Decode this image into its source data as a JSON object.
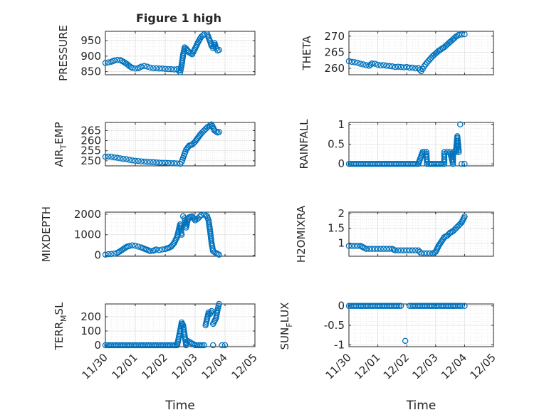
{
  "figure": {
    "title": "Figure 1 high"
  },
  "chart_data": [
    {
      "id": "pressure",
      "type": "scatter",
      "ylabel": "PRESSURE",
      "ylim": [
        840,
        980
      ],
      "yticks": [
        850,
        900,
        950
      ],
      "yticklabels": [
        "850",
        "900",
        "950"
      ],
      "xlim": [
        0,
        5
      ],
      "grid": true,
      "x": [
        0.0,
        0.1,
        0.2,
        0.3,
        0.4,
        0.5,
        0.6,
        0.7,
        0.8,
        0.9,
        1.0,
        1.1,
        1.2,
        1.3,
        1.4,
        1.5,
        1.6,
        1.7,
        1.8,
        1.9,
        2.0,
        2.1,
        2.2,
        2.3,
        2.4,
        2.5,
        2.55,
        2.6,
        2.65,
        2.7,
        2.8,
        2.9,
        3.0,
        3.1,
        3.2,
        3.3,
        3.4,
        3.5,
        3.55,
        3.6,
        3.65,
        3.7,
        3.75,
        3.8
      ],
      "y": [
        878,
        880,
        882,
        886,
        888,
        887,
        882,
        876,
        868,
        862,
        860,
        861,
        866,
        868,
        866,
        863,
        861,
        861,
        860,
        860,
        859,
        858,
        858,
        857,
        858,
        848,
        872,
        905,
        928,
        924,
        912,
        906,
        925,
        945,
        962,
        970,
        972,
        948,
        933,
        926,
        942,
        925,
        918,
        920
      ]
    },
    {
      "id": "theta",
      "type": "scatter",
      "ylabel": "THETA",
      "ylim": [
        258,
        271.5
      ],
      "yticks": [
        260,
        265,
        270
      ],
      "yticklabels": [
        "260",
        "265",
        "270"
      ],
      "xlim": [
        0,
        5
      ],
      "grid": true,
      "x": [
        0.0,
        0.1,
        0.2,
        0.3,
        0.4,
        0.5,
        0.6,
        0.7,
        0.8,
        0.9,
        1.0,
        1.1,
        1.2,
        1.3,
        1.4,
        1.5,
        1.6,
        1.7,
        1.8,
        1.9,
        2.0,
        2.1,
        2.2,
        2.3,
        2.4,
        2.5,
        2.55,
        2.6,
        2.65,
        2.7,
        2.8,
        2.9,
        3.0,
        3.1,
        3.2,
        3.3,
        3.4,
        3.5,
        3.6,
        3.7,
        3.8,
        3.9,
        4.0
      ],
      "y": [
        262.2,
        262.0,
        261.9,
        261.7,
        261.4,
        261.2,
        261.0,
        260.8,
        261.5,
        261.4,
        261.1,
        260.9,
        261.0,
        260.8,
        260.7,
        260.6,
        260.4,
        260.5,
        260.4,
        260.3,
        260.4,
        260.2,
        260.2,
        260.0,
        260.1,
        259.1,
        259.8,
        260.6,
        261.2,
        261.8,
        262.8,
        263.8,
        264.6,
        265.4,
        266.0,
        266.6,
        267.4,
        268.2,
        269.0,
        269.8,
        270.4,
        270.5,
        270.6
      ]
    },
    {
      "id": "air_temp",
      "type": "scatter",
      "ylim": [
        247.5,
        269
      ],
      "yticks": [
        250,
        255,
        260,
        265
      ],
      "yticklabels": [
        "250",
        "255",
        "260",
        "265"
      ],
      "xlim": [
        0,
        5
      ],
      "grid": true,
      "x": [
        0.0,
        0.1,
        0.2,
        0.3,
        0.4,
        0.5,
        0.6,
        0.7,
        0.8,
        0.9,
        1.0,
        1.1,
        1.2,
        1.3,
        1.4,
        1.5,
        1.6,
        1.7,
        1.8,
        1.9,
        2.0,
        2.1,
        2.2,
        2.3,
        2.4,
        2.5,
        2.55,
        2.6,
        2.65,
        2.7,
        2.8,
        2.9,
        3.0,
        3.1,
        3.2,
        3.3,
        3.4,
        3.5,
        3.55,
        3.6,
        3.65,
        3.7,
        3.75,
        3.8
      ],
      "y": [
        252.0,
        252.1,
        252.0,
        251.7,
        251.5,
        251.2,
        251.0,
        250.8,
        250.5,
        250.2,
        250.0,
        249.9,
        249.7,
        249.6,
        249.5,
        249.4,
        249.3,
        249.2,
        249.1,
        249.0,
        249.0,
        248.9,
        248.8,
        248.8,
        248.7,
        248.5,
        249.5,
        251.5,
        253.5,
        255.5,
        257.5,
        258.0,
        259.5,
        261.5,
        263.5,
        265.0,
        266.5,
        267.5,
        268.0,
        266.5,
        265.0,
        264.5,
        264.0,
        264.3
      ]
    },
    {
      "id": "rainfall",
      "type": "scatter",
      "ylabel": "RAINFALL",
      "ylim": [
        -0.05,
        1.05
      ],
      "yticks": [
        0,
        0.5,
        1
      ],
      "yticklabels": [
        "0",
        "0.5",
        "1"
      ],
      "xlim": [
        0,
        5
      ],
      "grid": true,
      "x": [
        0.0,
        0.3,
        0.6,
        0.9,
        1.2,
        1.5,
        1.8,
        2.1,
        2.4,
        2.7,
        3.0,
        3.3,
        3.6,
        3.9,
        4.0,
        2.55,
        2.68,
        3.3,
        3.4,
        3.5,
        3.6,
        3.7,
        3.8,
        3.75,
        3.85
      ],
      "y": [
        0,
        0,
        0,
        0,
        0,
        0,
        0,
        0,
        0,
        0,
        0,
        0,
        0,
        0,
        0,
        0.3,
        0.3,
        0.3,
        0.3,
        0.3,
        0.3,
        0.3,
        0.3,
        0.7,
        1.0
      ]
    },
    {
      "id": "mixdepth",
      "type": "scatter",
      "ylabel": "MIXDEPTH",
      "ylim": [
        -50,
        2100
      ],
      "yticks": [
        0,
        1000,
        2000
      ],
      "yticklabels": [
        "0",
        "1000",
        "2000"
      ],
      "xlim": [
        0,
        5
      ],
      "grid": true,
      "x": [
        0.0,
        0.1,
        0.2,
        0.3,
        0.4,
        0.5,
        0.6,
        0.7,
        0.8,
        0.9,
        1.0,
        1.1,
        1.2,
        1.3,
        1.4,
        1.5,
        1.6,
        1.7,
        1.8,
        1.9,
        2.0,
        2.1,
        2.2,
        2.3,
        2.4,
        2.45,
        2.5,
        2.55,
        2.6,
        2.65,
        2.7,
        2.75,
        2.8,
        2.9,
        3.0,
        3.1,
        3.2,
        3.3,
        3.4,
        3.45,
        3.5,
        3.55,
        3.6,
        3.7,
        3.8
      ],
      "y": [
        30,
        50,
        60,
        80,
        120,
        200,
        300,
        400,
        450,
        480,
        460,
        420,
        380,
        320,
        260,
        200,
        220,
        280,
        250,
        280,
        300,
        350,
        420,
        600,
        900,
        1200,
        1500,
        1000,
        1900,
        1800,
        1350,
        1700,
        1850,
        1900,
        1700,
        1800,
        1950,
        1980,
        1900,
        1700,
        1200,
        600,
        200,
        100,
        30
      ]
    },
    {
      "id": "h2omixra",
      "type": "scatter",
      "ylabel": "H2OMIXRA",
      "ylim": [
        0.55,
        2.05
      ],
      "yticks": [
        1,
        1.5,
        2
      ],
      "yticklabels": [
        "1",
        "1.5",
        "2"
      ],
      "xlim": [
        0,
        5
      ],
      "grid": true,
      "x": [
        0.0,
        0.1,
        0.2,
        0.3,
        0.4,
        0.5,
        0.6,
        0.7,
        0.8,
        0.9,
        1.0,
        1.1,
        1.2,
        1.3,
        1.4,
        1.5,
        1.6,
        1.7,
        1.8,
        1.9,
        2.0,
        2.1,
        2.2,
        2.3,
        2.4,
        2.5,
        2.6,
        2.7,
        2.8,
        2.9,
        3.0,
        3.1,
        3.2,
        3.3,
        3.4,
        3.5,
        3.6,
        3.7,
        3.75,
        3.8,
        3.9,
        4.0
      ],
      "y": [
        0.9,
        0.9,
        0.9,
        0.9,
        0.9,
        0.85,
        0.8,
        0.8,
        0.8,
        0.8,
        0.8,
        0.8,
        0.8,
        0.8,
        0.8,
        0.8,
        0.75,
        0.75,
        0.75,
        0.75,
        0.75,
        0.75,
        0.75,
        0.75,
        0.75,
        0.65,
        0.65,
        0.65,
        0.65,
        0.65,
        0.7,
        0.9,
        1.05,
        1.2,
        1.25,
        1.35,
        1.4,
        1.5,
        1.55,
        1.6,
        1.7,
        1.9
      ]
    },
    {
      "id": "terr_msl",
      "type": "scatter",
      "ylim": [
        -10,
        290
      ],
      "yticks": [
        0,
        100,
        200
      ],
      "yticklabels": [
        "0",
        "100",
        "200"
      ],
      "xlim": [
        0,
        5
      ],
      "xticks": [
        0,
        1,
        2,
        3,
        4,
        5
      ],
      "xticklabels": [
        "11/30",
        "12/01",
        "12/02",
        "12/03",
        "12/04",
        "12/05"
      ],
      "xlabel": "Time",
      "grid": true,
      "x": [
        0.0,
        0.3,
        0.6,
        0.9,
        1.2,
        1.5,
        1.8,
        2.1,
        2.4,
        2.7,
        3.0,
        3.3,
        3.6,
        3.9,
        4.0,
        2.5,
        2.55,
        2.6,
        2.65,
        2.75,
        3.35,
        3.45,
        3.5,
        3.55,
        3.6,
        3.65,
        3.7,
        3.75,
        3.8
      ],
      "y": [
        0,
        0,
        0,
        0,
        0,
        0,
        0,
        0,
        0,
        0,
        0,
        0,
        0,
        0,
        0,
        100,
        160,
        140,
        70,
        30,
        140,
        230,
        220,
        240,
        150,
        170,
        190,
        250,
        290
      ]
    },
    {
      "id": "sun_flux",
      "type": "scatter",
      "ylim": [
        -1.05,
        0.05
      ],
      "yticks": [
        -1,
        -0.5,
        0
      ],
      "yticklabels": [
        "-1",
        "-0.5",
        "0"
      ],
      "xlim": [
        0,
        5
      ],
      "xticks": [
        0,
        1,
        2,
        3,
        4,
        5
      ],
      "xticklabels": [
        "11/30",
        "12/01",
        "12/02",
        "12/03",
        "12/04",
        "12/05"
      ],
      "xlabel": "Time",
      "grid": true,
      "x": [
        0.0,
        0.3,
        0.6,
        0.9,
        1.2,
        1.5,
        1.8,
        2.1,
        2.4,
        2.7,
        3.0,
        3.3,
        3.6,
        3.9,
        4.0,
        1.95
      ],
      "y": [
        0,
        0,
        0,
        0,
        0,
        0,
        0,
        0,
        0,
        0,
        0,
        0,
        0,
        0,
        0,
        -0.9
      ]
    }
  ],
  "labels": {
    "air_temp": {
      "main": "AIR",
      "sub": "T",
      "rest": "EMP"
    },
    "terr_msl": {
      "main": "TERR",
      "sub": "M",
      "rest": "SL"
    },
    "sun_flux": {
      "main": "SUN",
      "sub": "F",
      "rest": "LUX"
    }
  },
  "colors": {
    "marker": "#0072BD",
    "axis": "#262626",
    "grid": "#dfdfdf"
  }
}
